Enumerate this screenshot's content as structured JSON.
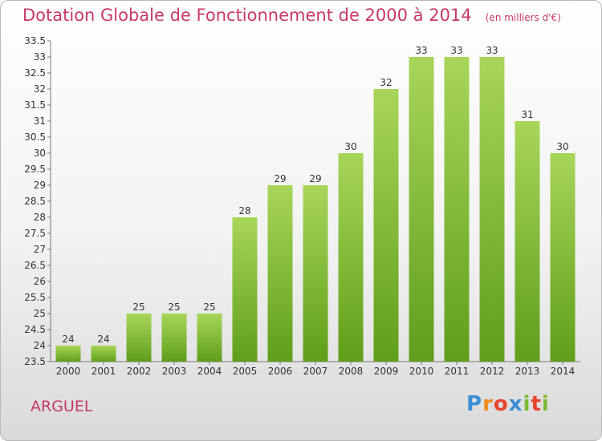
{
  "header": {
    "title": "Dotation Globale de Fonctionnement de 2000 à 2014",
    "subtitle": "(en milliers d'€)"
  },
  "footer": {
    "commune": "ARGUEL",
    "logo_text": "Proxiti"
  },
  "colors": {
    "title": "#c8396a",
    "bar_top": "#a8d65a",
    "bar_bottom": "#5f9e1a"
  },
  "chart_data": {
    "type": "bar",
    "categories": [
      "2000",
      "2001",
      "2002",
      "2003",
      "2004",
      "2005",
      "2006",
      "2007",
      "2008",
      "2009",
      "2010",
      "2011",
      "2012",
      "2013",
      "2014"
    ],
    "values": [
      24,
      24,
      25,
      25,
      25,
      28,
      29,
      29,
      30,
      32,
      33,
      33,
      33,
      31,
      30
    ],
    "title": "Dotation Globale de Fonctionnement de 2000 à 2014",
    "subtitle": "(en milliers d'€)",
    "xlabel": "",
    "ylabel": "",
    "ylim": [
      23.5,
      33.5
    ],
    "yticks": [
      "23.5",
      "24",
      "24.5",
      "25",
      "25.5",
      "26",
      "26.5",
      "27",
      "27.5",
      "28",
      "28.5",
      "29",
      "29.5",
      "30",
      "30.5",
      "31",
      "31.5",
      "32",
      "32.5",
      "33",
      "33.5"
    ],
    "grid": false,
    "legend": "none"
  }
}
